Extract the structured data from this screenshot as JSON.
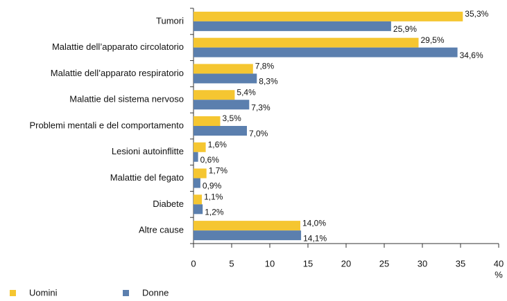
{
  "chart_data": {
    "type": "barh",
    "categories": [
      "Tumori",
      "Malattie dell’apparato circolatorio",
      "Malattie dell’apparato respiratorio",
      "Malattie del sistema nervoso",
      "Problemi mentali e del comportamento",
      "Lesioni autoinflitte",
      "Malattie del fegato",
      "Diabete",
      "Altre cause"
    ],
    "series": [
      {
        "name": "Uomini",
        "color": "#f5c631",
        "values": [
          35.3,
          29.5,
          7.8,
          5.4,
          3.5,
          1.6,
          1.7,
          1.1,
          14.0
        ],
        "value_labels": [
          "35,3%",
          "29,5%",
          "7,8%",
          "5,4%",
          "3,5%",
          "1,6%",
          "1,7%",
          "1,1%",
          "14,0%"
        ]
      },
      {
        "name": "Donne",
        "color": "#5b7fae",
        "values": [
          25.9,
          34.6,
          8.3,
          7.3,
          7.0,
          0.6,
          0.9,
          1.2,
          14.1
        ],
        "value_labels": [
          "25,9%",
          "34,6%",
          "8,3%",
          "7,3%",
          "7,0%",
          "0,6%",
          "0,9%",
          "1,2%",
          "14,1%"
        ]
      }
    ],
    "xlabel": "%",
    "xlim": [
      0,
      40
    ],
    "xticks": [
      0,
      5,
      10,
      15,
      20,
      25,
      30,
      35,
      40
    ]
  }
}
